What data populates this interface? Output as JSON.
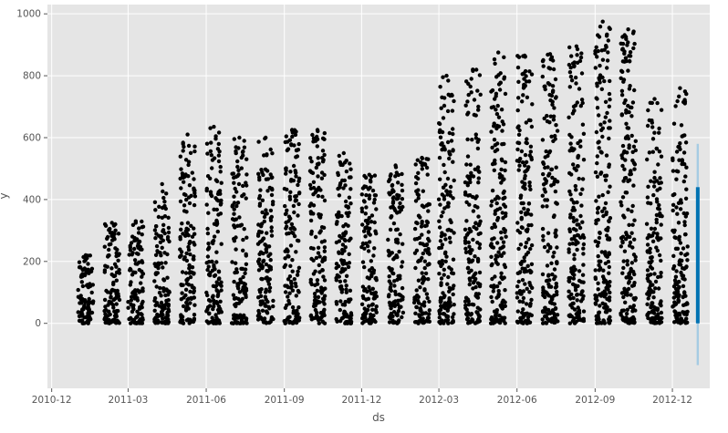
{
  "chart_data": {
    "type": "scatter",
    "xlabel": "ds",
    "ylabel": "y",
    "x_range": [
      "2010-11-26",
      "2013-01-14"
    ],
    "ylim": [
      -210,
      1030
    ],
    "x_ticks": [
      "2010-12",
      "2011-03",
      "2011-06",
      "2011-09",
      "2011-12",
      "2012-03",
      "2012-06",
      "2012-09",
      "2012-12"
    ],
    "y_ticks": [
      0,
      200,
      400,
      600,
      800,
      1000
    ],
    "grid": true,
    "background_color": "#e5e5e5",
    "grid_color": "#ffffff",
    "point_color": "#000000",
    "forecast_color": "#0072b2",
    "forecast_band_color": "#a6cbe3",
    "series": [
      {
        "name": "observed",
        "style": "points",
        "segments": [
          {
            "start": "2011-01-01",
            "end": "2011-01-19",
            "max": 220
          },
          {
            "start": "2011-02-01",
            "end": "2011-02-19",
            "max": 325
          },
          {
            "start": "2011-03-01",
            "end": "2011-03-19",
            "max": 330
          },
          {
            "start": "2011-04-01",
            "end": "2011-04-19",
            "max": 450
          },
          {
            "start": "2011-05-01",
            "end": "2011-05-19",
            "max": 610
          },
          {
            "start": "2011-06-01",
            "end": "2011-06-19",
            "max": 635
          },
          {
            "start": "2011-07-01",
            "end": "2011-07-19",
            "max": 600
          },
          {
            "start": "2011-08-01",
            "end": "2011-08-19",
            "max": 600
          },
          {
            "start": "2011-09-01",
            "end": "2011-09-19",
            "max": 625
          },
          {
            "start": "2011-10-01",
            "end": "2011-10-19",
            "max": 625
          },
          {
            "start": "2011-11-01",
            "end": "2011-11-19",
            "max": 550
          },
          {
            "start": "2011-12-01",
            "end": "2011-12-19",
            "max": 480
          },
          {
            "start": "2012-01-01",
            "end": "2012-01-19",
            "max": 510
          },
          {
            "start": "2012-02-01",
            "end": "2012-02-19",
            "max": 535
          },
          {
            "start": "2012-03-01",
            "end": "2012-03-19",
            "max": 800
          },
          {
            "start": "2012-04-01",
            "end": "2012-04-19",
            "max": 820
          },
          {
            "start": "2012-05-01",
            "end": "2012-05-19",
            "max": 875
          },
          {
            "start": "2012-06-01",
            "end": "2012-06-19",
            "max": 865
          },
          {
            "start": "2012-07-01",
            "end": "2012-07-19",
            "max": 870
          },
          {
            "start": "2012-08-01",
            "end": "2012-08-19",
            "max": 895
          },
          {
            "start": "2012-09-01",
            "end": "2012-09-19",
            "max": 975
          },
          {
            "start": "2012-10-01",
            "end": "2012-10-19",
            "max": 950
          },
          {
            "start": "2012-11-01",
            "end": "2012-11-19",
            "max": 725
          },
          {
            "start": "2012-12-01",
            "end": "2012-12-19",
            "max": 760
          }
        ]
      },
      {
        "name": "forecast",
        "style": "line",
        "x": [
          "2012-12-20",
          "2012-12-31"
        ],
        "y_low": 0,
        "y_high": 440,
        "band_low": -135,
        "band_high": 580
      }
    ]
  }
}
